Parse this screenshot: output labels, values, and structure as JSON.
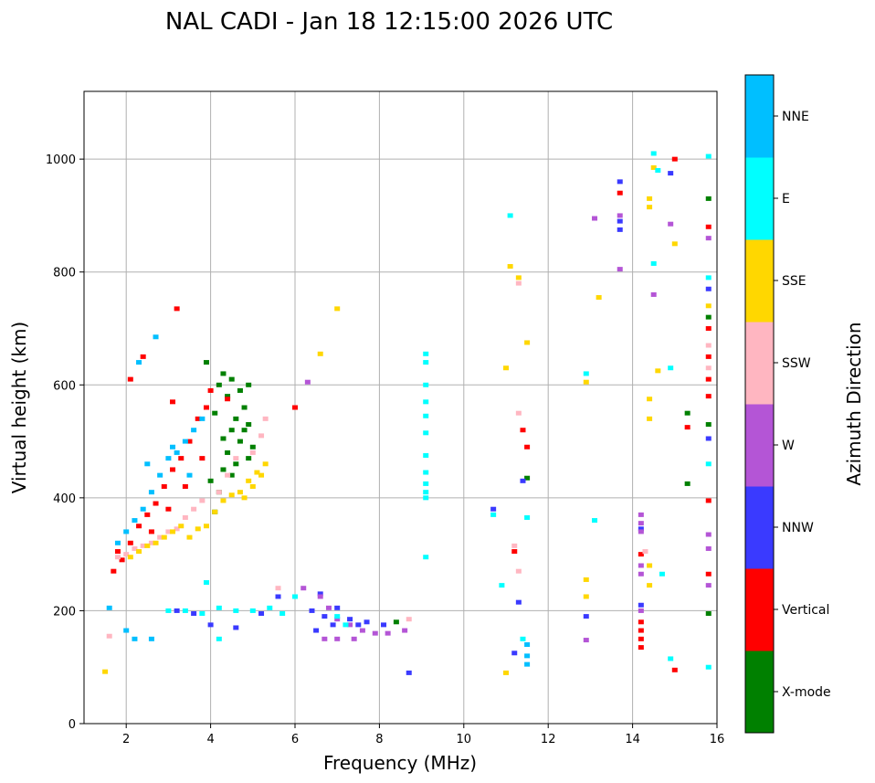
{
  "chart_data": {
    "type": "scatter",
    "title": "NAL CADI - Jan 18 12:15:00 2026 UTC",
    "xlabel": "Frequency (MHz)",
    "ylabel": "Virtual height (km)",
    "xlim": [
      1,
      16
    ],
    "ylim": [
      0,
      1120
    ],
    "x_ticks": [
      2,
      4,
      6,
      8,
      10,
      12,
      14,
      16
    ],
    "y_ticks": [
      0,
      200,
      400,
      600,
      800,
      1000
    ],
    "grid": true,
    "colorbar": {
      "label": "Azimuth Direction",
      "categories": [
        "X-mode",
        "Vertical",
        "NNW",
        "W",
        "SSW",
        "SSE",
        "E",
        "NNE"
      ],
      "colors": [
        "#008000",
        "#ff0000",
        "#3a3aff",
        "#b455d6",
        "#ffb6c1",
        "#ffd700",
        "#00ffff",
        "#00bfff"
      ]
    },
    "series": [
      {
        "name": "X-mode",
        "points": [
          [
            4.1,
            375
          ],
          [
            4.2,
            410
          ],
          [
            4.3,
            450
          ],
          [
            4.4,
            480
          ],
          [
            4.5,
            520
          ],
          [
            4.6,
            540
          ],
          [
            4.7,
            500
          ],
          [
            4.8,
            560
          ],
          [
            4.9,
            470
          ],
          [
            4.0,
            430
          ],
          [
            4.2,
            600
          ],
          [
            4.3,
            620
          ],
          [
            4.5,
            610
          ],
          [
            4.7,
            590
          ],
          [
            4.9,
            530
          ],
          [
            5.0,
            490
          ],
          [
            4.1,
            550
          ],
          [
            4.4,
            580
          ],
          [
            4.6,
            460
          ],
          [
            4.8,
            520
          ],
          [
            3.9,
            640
          ],
          [
            4.3,
            505
          ],
          [
            4.5,
            440
          ],
          [
            4.9,
            600
          ],
          [
            11.5,
            435
          ],
          [
            15.3,
            425
          ],
          [
            15.3,
            550
          ],
          [
            15.8,
            530
          ],
          [
            15.8,
            720
          ],
          [
            15.8,
            930
          ],
          [
            15.8,
            195
          ],
          [
            8.4,
            180
          ]
        ]
      },
      {
        "name": "Vertical",
        "points": [
          [
            1.7,
            270
          ],
          [
            1.9,
            290
          ],
          [
            2.1,
            320
          ],
          [
            2.3,
            350
          ],
          [
            2.5,
            370
          ],
          [
            2.7,
            390
          ],
          [
            2.9,
            420
          ],
          [
            3.1,
            450
          ],
          [
            3.3,
            470
          ],
          [
            3.5,
            500
          ],
          [
            3.7,
            540
          ],
          [
            3.9,
            560
          ],
          [
            4.0,
            590
          ],
          [
            3.1,
            570
          ],
          [
            2.4,
            650
          ],
          [
            2.1,
            610
          ],
          [
            1.8,
            305
          ],
          [
            2.6,
            340
          ],
          [
            3.0,
            380
          ],
          [
            3.4,
            420
          ],
          [
            3.8,
            470
          ],
          [
            3.2,
            735
          ],
          [
            4.4,
            575
          ],
          [
            6.0,
            560
          ],
          [
            11.2,
            305
          ],
          [
            11.4,
            520
          ],
          [
            11.5,
            490
          ],
          [
            14.2,
            300
          ],
          [
            14.2,
            180
          ],
          [
            14.2,
            165
          ],
          [
            14.2,
            150
          ],
          [
            14.2,
            135
          ],
          [
            15.3,
            525
          ],
          [
            15.8,
            880
          ],
          [
            15.8,
            700
          ],
          [
            15.8,
            650
          ],
          [
            15.8,
            610
          ],
          [
            15.8,
            580
          ],
          [
            15.8,
            265
          ],
          [
            15.8,
            395
          ],
          [
            15.0,
            95
          ],
          [
            15.0,
            1000
          ],
          [
            13.7,
            940
          ]
        ]
      },
      {
        "name": "NNW",
        "points": [
          [
            3.2,
            200
          ],
          [
            3.6,
            195
          ],
          [
            4.0,
            175
          ],
          [
            4.6,
            170
          ],
          [
            5.2,
            195
          ],
          [
            5.6,
            225
          ],
          [
            6.4,
            200
          ],
          [
            6.7,
            190
          ],
          [
            7.0,
            205
          ],
          [
            7.3,
            185
          ],
          [
            7.5,
            175
          ],
          [
            6.6,
            230
          ],
          [
            6.5,
            165
          ],
          [
            6.9,
            175
          ],
          [
            7.7,
            180
          ],
          [
            8.1,
            175
          ],
          [
            8.7,
            90
          ],
          [
            10.7,
            380
          ],
          [
            11.2,
            125
          ],
          [
            11.3,
            215
          ],
          [
            11.4,
            430
          ],
          [
            13.7,
            960
          ],
          [
            13.7,
            890
          ],
          [
            13.7,
            875
          ],
          [
            14.9,
            975
          ],
          [
            15.8,
            770
          ],
          [
            15.8,
            505
          ],
          [
            12.9,
            190
          ],
          [
            14.2,
            210
          ],
          [
            14.2,
            345
          ]
        ]
      },
      {
        "name": "W",
        "points": [
          [
            6.2,
            240
          ],
          [
            6.6,
            225
          ],
          [
            6.8,
            205
          ],
          [
            7.0,
            185
          ],
          [
            7.3,
            175
          ],
          [
            7.6,
            165
          ],
          [
            7.9,
            160
          ],
          [
            8.2,
            160
          ],
          [
            8.6,
            165
          ],
          [
            6.7,
            150
          ],
          [
            7.0,
            150
          ],
          [
            7.4,
            150
          ],
          [
            6.3,
            605
          ],
          [
            13.7,
            900
          ],
          [
            13.7,
            805
          ],
          [
            14.2,
            370
          ],
          [
            14.2,
            355
          ],
          [
            14.2,
            340
          ],
          [
            14.2,
            280
          ],
          [
            14.2,
            265
          ],
          [
            14.2,
            200
          ],
          [
            14.5,
            760
          ],
          [
            14.9,
            885
          ],
          [
            15.8,
            860
          ],
          [
            15.8,
            335
          ],
          [
            15.8,
            310
          ],
          [
            15.8,
            245
          ],
          [
            12.9,
            148
          ],
          [
            13.1,
            895
          ]
        ]
      },
      {
        "name": "SSW",
        "points": [
          [
            1.8,
            295
          ],
          [
            2.0,
            300
          ],
          [
            2.2,
            310
          ],
          [
            2.4,
            315
          ],
          [
            2.6,
            320
          ],
          [
            2.8,
            330
          ],
          [
            3.0,
            340
          ],
          [
            3.2,
            345
          ],
          [
            3.4,
            365
          ],
          [
            3.6,
            380
          ],
          [
            3.8,
            395
          ],
          [
            4.2,
            410
          ],
          [
            4.4,
            440
          ],
          [
            4.6,
            470
          ],
          [
            5.0,
            480
          ],
          [
            5.2,
            510
          ],
          [
            5.3,
            540
          ],
          [
            5.6,
            240
          ],
          [
            8.7,
            185
          ],
          [
            11.2,
            315
          ],
          [
            11.3,
            270
          ],
          [
            11.3,
            550
          ],
          [
            11.3,
            780
          ],
          [
            14.3,
            305
          ],
          [
            15.8,
            670
          ],
          [
            15.8,
            630
          ],
          [
            1.6,
            155
          ]
        ]
      },
      {
        "name": "SSE",
        "points": [
          [
            2.1,
            295
          ],
          [
            2.3,
            305
          ],
          [
            2.5,
            315
          ],
          [
            2.7,
            320
          ],
          [
            2.9,
            330
          ],
          [
            3.1,
            340
          ],
          [
            3.3,
            350
          ],
          [
            3.5,
            330
          ],
          [
            3.7,
            345
          ],
          [
            3.9,
            350
          ],
          [
            4.1,
            375
          ],
          [
            4.3,
            395
          ],
          [
            4.5,
            405
          ],
          [
            4.7,
            410
          ],
          [
            4.9,
            430
          ],
          [
            5.1,
            445
          ],
          [
            5.3,
            460
          ],
          [
            5.0,
            420
          ],
          [
            4.8,
            400
          ],
          [
            5.2,
            440
          ],
          [
            6.6,
            655
          ],
          [
            7.0,
            735
          ],
          [
            11.0,
            630
          ],
          [
            11.1,
            810
          ],
          [
            11.3,
            790
          ],
          [
            11.5,
            675
          ],
          [
            11.0,
            90
          ],
          [
            12.9,
            255
          ],
          [
            12.9,
            225
          ],
          [
            12.9,
            605
          ],
          [
            13.2,
            755
          ],
          [
            14.4,
            575
          ],
          [
            14.4,
            540
          ],
          [
            14.4,
            930
          ],
          [
            14.4,
            915
          ],
          [
            14.4,
            280
          ],
          [
            14.4,
            245
          ],
          [
            14.5,
            985
          ],
          [
            14.6,
            625
          ],
          [
            15.0,
            850
          ],
          [
            15.8,
            740
          ],
          [
            1.5,
            92
          ]
        ]
      },
      {
        "name": "E",
        "points": [
          [
            3.0,
            200
          ],
          [
            3.4,
            200
          ],
          [
            3.8,
            195
          ],
          [
            4.2,
            205
          ],
          [
            4.6,
            200
          ],
          [
            5.0,
            200
          ],
          [
            5.4,
            205
          ],
          [
            5.7,
            195
          ],
          [
            6.0,
            225
          ],
          [
            7.0,
            190
          ],
          [
            7.2,
            175
          ],
          [
            3.9,
            250
          ],
          [
            4.2,
            150
          ],
          [
            9.1,
            655
          ],
          [
            9.1,
            640
          ],
          [
            9.1,
            600
          ],
          [
            9.1,
            570
          ],
          [
            9.1,
            545
          ],
          [
            9.1,
            515
          ],
          [
            9.1,
            475
          ],
          [
            9.1,
            445
          ],
          [
            9.1,
            425
          ],
          [
            9.1,
            410
          ],
          [
            9.1,
            400
          ],
          [
            9.1,
            295
          ],
          [
            10.7,
            370
          ],
          [
            11.1,
            900
          ],
          [
            11.5,
            365
          ],
          [
            11.4,
            150
          ],
          [
            12.9,
            620
          ],
          [
            13.1,
            360
          ],
          [
            14.5,
            815
          ],
          [
            14.5,
            1010
          ],
          [
            14.6,
            980
          ],
          [
            14.9,
            630
          ],
          [
            14.9,
            115
          ],
          [
            15.8,
            1005
          ],
          [
            15.8,
            790
          ],
          [
            15.8,
            460
          ],
          [
            15.8,
            100
          ],
          [
            14.7,
            265
          ],
          [
            10.9,
            245
          ]
        ]
      },
      {
        "name": "NNE",
        "points": [
          [
            1.8,
            320
          ],
          [
            2.0,
            340
          ],
          [
            2.2,
            360
          ],
          [
            2.4,
            380
          ],
          [
            2.6,
            410
          ],
          [
            2.8,
            440
          ],
          [
            3.0,
            470
          ],
          [
            3.2,
            480
          ],
          [
            3.4,
            500
          ],
          [
            3.6,
            520
          ],
          [
            3.8,
            540
          ],
          [
            2.3,
            640
          ],
          [
            2.7,
            685
          ],
          [
            2.2,
            150
          ],
          [
            2.6,
            150
          ],
          [
            2.0,
            165
          ],
          [
            1.6,
            205
          ],
          [
            2.5,
            460
          ],
          [
            3.1,
            490
          ],
          [
            3.5,
            440
          ],
          [
            11.5,
            140
          ],
          [
            11.5,
            120
          ],
          [
            11.5,
            105
          ]
        ]
      }
    ]
  }
}
